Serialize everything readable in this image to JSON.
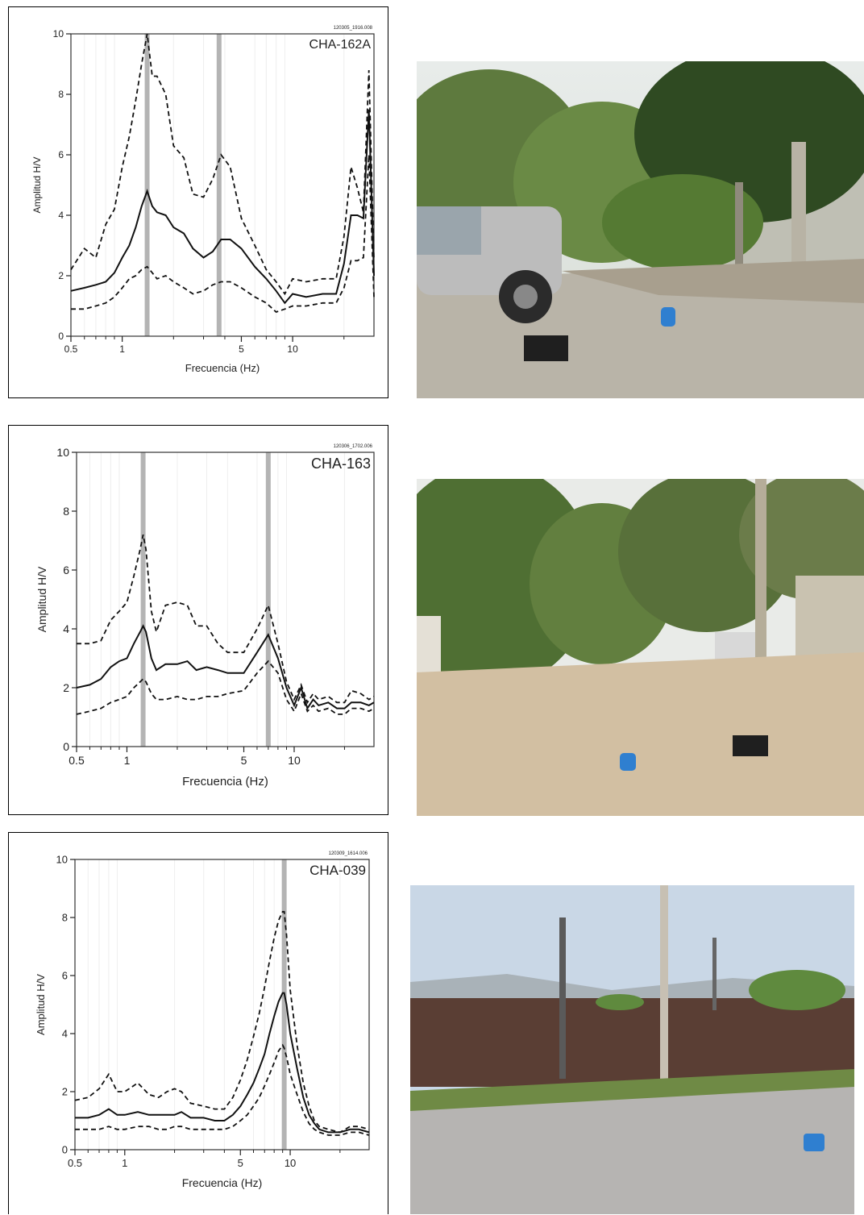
{
  "chart_data": [
    {
      "type": "line",
      "title": "CHA-162A",
      "file_id": "120305_1916.008",
      "xlabel": "Frecuencia (Hz)",
      "ylabel": "Amplitud H/V",
      "x_scale": "log",
      "xlim": [
        0.5,
        30
      ],
      "ylim": [
        0,
        10
      ],
      "y_ticks": [
        0,
        2,
        4,
        6,
        8,
        10
      ],
      "x_ticks": [
        0.5,
        1,
        5,
        10
      ],
      "peak_lines": [
        1.4,
        3.7
      ],
      "series": [
        {
          "style": "solid",
          "x": [
            0.5,
            0.6,
            0.7,
            0.8,
            0.9,
            1.0,
            1.1,
            1.2,
            1.3,
            1.4,
            1.5,
            1.6,
            1.8,
            2.0,
            2.3,
            2.6,
            3.0,
            3.4,
            3.8,
            4.3,
            5.0,
            6.0,
            7.0,
            8.0,
            9.0,
            10,
            12,
            15,
            18,
            20,
            22,
            24,
            26,
            28,
            30
          ],
          "y": [
            1.5,
            1.6,
            1.7,
            1.8,
            2.1,
            2.6,
            3.0,
            3.6,
            4.3,
            4.8,
            4.3,
            4.1,
            4.0,
            3.6,
            3.4,
            2.9,
            2.6,
            2.8,
            3.2,
            3.2,
            2.9,
            2.3,
            1.9,
            1.5,
            1.1,
            1.4,
            1.3,
            1.4,
            1.4,
            2.4,
            4.0,
            4.0,
            3.9,
            7.5,
            2.0
          ]
        },
        {
          "style": "dashed",
          "x": [
            0.5,
            0.6,
            0.7,
            0.8,
            0.9,
            1.0,
            1.1,
            1.2,
            1.3,
            1.4,
            1.5,
            1.6,
            1.8,
            2.0,
            2.3,
            2.6,
            3.0,
            3.4,
            3.8,
            4.3,
            5.0,
            6.0,
            7.0,
            8.0,
            9.0,
            10,
            12,
            15,
            18,
            20,
            22,
            24,
            26,
            28,
            30
          ],
          "y": [
            2.2,
            2.9,
            2.6,
            3.7,
            4.2,
            5.6,
            6.6,
            7.8,
            9.0,
            10.0,
            8.6,
            8.6,
            8.0,
            6.3,
            5.9,
            4.7,
            4.6,
            5.2,
            6.0,
            5.6,
            3.9,
            3.0,
            2.2,
            1.8,
            1.4,
            1.9,
            1.8,
            1.9,
            1.9,
            3.3,
            5.6,
            4.9,
            4.1,
            8.8,
            2.5
          ]
        },
        {
          "style": "dashed",
          "x": [
            0.5,
            0.6,
            0.7,
            0.8,
            0.9,
            1.0,
            1.1,
            1.2,
            1.3,
            1.4,
            1.5,
            1.6,
            1.8,
            2.0,
            2.3,
            2.6,
            3.0,
            3.4,
            3.8,
            4.3,
            5.0,
            6.0,
            7.0,
            8.0,
            9.0,
            10,
            12,
            15,
            18,
            20,
            22,
            24,
            26,
            28,
            30
          ],
          "y": [
            0.9,
            0.9,
            1.0,
            1.1,
            1.3,
            1.6,
            1.9,
            2.0,
            2.2,
            2.3,
            2.1,
            1.9,
            2.0,
            1.8,
            1.6,
            1.4,
            1.5,
            1.7,
            1.8,
            1.8,
            1.6,
            1.3,
            1.1,
            0.8,
            0.9,
            1.0,
            1.0,
            1.1,
            1.1,
            1.6,
            2.5,
            2.5,
            2.6,
            6.0,
            1.3
          ]
        }
      ]
    },
    {
      "type": "line",
      "title": "CHA-163",
      "file_id": "120306_1702.006",
      "xlabel": "Frecuencia (Hz)",
      "ylabel": "Amplitud H/V",
      "x_scale": "log",
      "xlim": [
        0.5,
        30
      ],
      "ylim": [
        0,
        10
      ],
      "y_ticks": [
        0,
        2,
        4,
        6,
        8,
        10
      ],
      "x_ticks": [
        0.5,
        1,
        5,
        10
      ],
      "peak_lines": [
        1.25,
        7.0
      ],
      "series": [
        {
          "style": "solid",
          "x": [
            0.5,
            0.6,
            0.7,
            0.8,
            0.9,
            1.0,
            1.1,
            1.2,
            1.25,
            1.3,
            1.4,
            1.5,
            1.7,
            2.0,
            2.3,
            2.6,
            3.0,
            3.5,
            4.0,
            5.0,
            6.0,
            7.0,
            8.0,
            9.0,
            10,
            11,
            12,
            13,
            14,
            16,
            18,
            20,
            22,
            25,
            28,
            30
          ],
          "y": [
            2.0,
            2.1,
            2.3,
            2.7,
            2.9,
            3.0,
            3.5,
            3.9,
            4.1,
            3.9,
            3.0,
            2.6,
            2.8,
            2.8,
            2.9,
            2.6,
            2.7,
            2.6,
            2.5,
            2.5,
            3.2,
            3.8,
            3.0,
            2.0,
            1.4,
            2.0,
            1.3,
            1.6,
            1.4,
            1.5,
            1.3,
            1.3,
            1.5,
            1.5,
            1.4,
            1.5
          ]
        },
        {
          "style": "dashed",
          "x": [
            0.5,
            0.6,
            0.7,
            0.8,
            0.9,
            1.0,
            1.1,
            1.2,
            1.25,
            1.3,
            1.4,
            1.5,
            1.7,
            2.0,
            2.3,
            2.6,
            3.0,
            3.5,
            4.0,
            5.0,
            6.0,
            7.0,
            8.0,
            9.0,
            10,
            11,
            12,
            13,
            14,
            16,
            18,
            20,
            22,
            25,
            28,
            30
          ],
          "y": [
            3.5,
            3.5,
            3.6,
            4.3,
            4.6,
            4.9,
            5.8,
            6.7,
            7.2,
            6.7,
            4.6,
            3.9,
            4.8,
            4.9,
            4.8,
            4.1,
            4.1,
            3.5,
            3.2,
            3.2,
            4.0,
            4.8,
            3.5,
            2.2,
            1.6,
            2.1,
            1.5,
            1.8,
            1.6,
            1.7,
            1.5,
            1.5,
            1.9,
            1.8,
            1.6,
            1.7
          ]
        },
        {
          "style": "dashed",
          "x": [
            0.5,
            0.6,
            0.7,
            0.8,
            0.9,
            1.0,
            1.1,
            1.2,
            1.25,
            1.3,
            1.4,
            1.5,
            1.7,
            2.0,
            2.3,
            2.6,
            3.0,
            3.5,
            4.0,
            5.0,
            6.0,
            7.0,
            8.0,
            9.0,
            10,
            11,
            12,
            13,
            14,
            16,
            18,
            20,
            22,
            25,
            28,
            30
          ],
          "y": [
            1.1,
            1.2,
            1.3,
            1.5,
            1.6,
            1.7,
            2.0,
            2.2,
            2.3,
            2.2,
            1.8,
            1.6,
            1.6,
            1.7,
            1.6,
            1.6,
            1.7,
            1.7,
            1.8,
            1.9,
            2.5,
            2.9,
            2.5,
            1.6,
            1.2,
            1.8,
            1.2,
            1.4,
            1.2,
            1.3,
            1.1,
            1.1,
            1.3,
            1.3,
            1.2,
            1.3
          ]
        }
      ]
    },
    {
      "type": "line",
      "title": "CHA-039",
      "file_id": "120309_1614.006",
      "xlabel": "Frecuencia (Hz)",
      "ylabel": "Amplitud H/V",
      "x_scale": "log",
      "xlim": [
        0.5,
        30
      ],
      "ylim": [
        0,
        10
      ],
      "y_ticks": [
        0,
        2,
        4,
        6,
        8,
        10
      ],
      "x_ticks": [
        0.5,
        1,
        5,
        10
      ],
      "peak_lines": [
        9.2
      ],
      "series": [
        {
          "style": "solid",
          "x": [
            0.5,
            0.6,
            0.7,
            0.8,
            0.9,
            1.0,
            1.2,
            1.4,
            1.6,
            1.8,
            2.0,
            2.2,
            2.5,
            3.0,
            3.5,
            4.0,
            4.5,
            5.0,
            5.5,
            6.0,
            6.5,
            7.0,
            7.5,
            8.0,
            8.5,
            9.0,
            9.2,
            9.5,
            10,
            11,
            12,
            13,
            14,
            15,
            17,
            20,
            23,
            26,
            30
          ],
          "y": [
            1.1,
            1.1,
            1.2,
            1.4,
            1.2,
            1.2,
            1.3,
            1.2,
            1.2,
            1.2,
            1.2,
            1.3,
            1.1,
            1.1,
            1.0,
            1.0,
            1.2,
            1.5,
            1.9,
            2.3,
            2.8,
            3.3,
            4.0,
            4.6,
            5.1,
            5.4,
            5.4,
            5.0,
            4.0,
            2.8,
            1.8,
            1.2,
            0.9,
            0.7,
            0.6,
            0.6,
            0.7,
            0.7,
            0.6
          ]
        },
        {
          "style": "dashed",
          "x": [
            0.5,
            0.6,
            0.7,
            0.8,
            0.9,
            1.0,
            1.2,
            1.4,
            1.6,
            1.8,
            2.0,
            2.2,
            2.5,
            3.0,
            3.5,
            4.0,
            4.5,
            5.0,
            5.5,
            6.0,
            6.5,
            7.0,
            7.5,
            8.0,
            8.5,
            9.0,
            9.2,
            9.5,
            10,
            11,
            12,
            13,
            14,
            15,
            17,
            20,
            23,
            26,
            30
          ],
          "y": [
            1.7,
            1.8,
            2.1,
            2.6,
            2.0,
            2.0,
            2.3,
            1.9,
            1.8,
            2.0,
            2.1,
            2.0,
            1.6,
            1.5,
            1.4,
            1.4,
            1.8,
            2.4,
            3.1,
            3.9,
            4.7,
            5.6,
            6.5,
            7.3,
            7.9,
            8.2,
            8.2,
            7.4,
            5.5,
            3.6,
            2.3,
            1.5,
            1.0,
            0.8,
            0.7,
            0.6,
            0.8,
            0.8,
            0.7
          ]
        },
        {
          "style": "dashed",
          "x": [
            0.5,
            0.6,
            0.7,
            0.8,
            0.9,
            1.0,
            1.2,
            1.4,
            1.6,
            1.8,
            2.0,
            2.2,
            2.5,
            3.0,
            3.5,
            4.0,
            4.5,
            5.0,
            5.5,
            6.0,
            6.5,
            7.0,
            7.5,
            8.0,
            8.5,
            9.0,
            9.2,
            9.5,
            10,
            11,
            12,
            13,
            14,
            15,
            17,
            20,
            23,
            26,
            30
          ],
          "y": [
            0.7,
            0.7,
            0.7,
            0.8,
            0.7,
            0.7,
            0.8,
            0.8,
            0.7,
            0.7,
            0.8,
            0.8,
            0.7,
            0.7,
            0.7,
            0.7,
            0.8,
            1.0,
            1.2,
            1.5,
            1.8,
            2.2,
            2.6,
            3.0,
            3.4,
            3.6,
            3.5,
            3.2,
            2.6,
            1.9,
            1.3,
            0.9,
            0.7,
            0.6,
            0.5,
            0.5,
            0.6,
            0.6,
            0.5
          ]
        }
      ]
    }
  ],
  "photos": [
    {
      "icon": "site-photo-pickup-truck-trees"
    },
    {
      "icon": "site-photo-dirt-road-trees"
    },
    {
      "icon": "site-photo-wall-street"
    }
  ]
}
